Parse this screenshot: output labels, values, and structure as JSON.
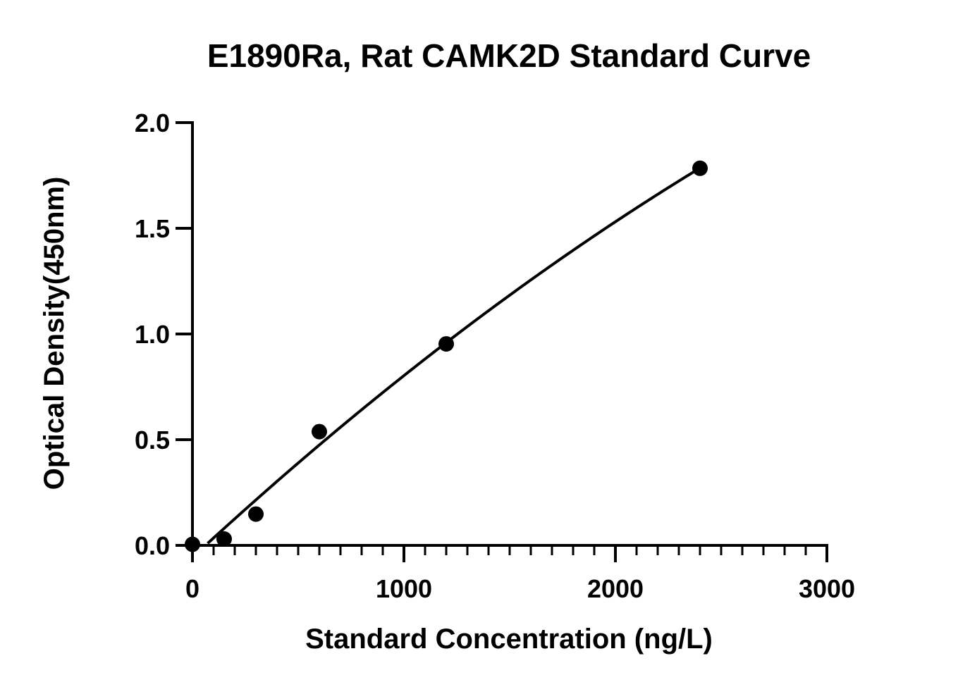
{
  "chart_data": {
    "type": "scatter",
    "title": "E1890Ra, Rat CAMK2D Standard Curve",
    "xlabel": "Standard Concentration (ng/L)",
    "ylabel": "Optical Density(450nm)",
    "xlim": [
      0,
      3000
    ],
    "ylim": [
      0,
      2.0
    ],
    "x_ticks": [
      "0",
      "1000",
      "2000",
      "3000"
    ],
    "y_ticks": [
      "0.0",
      "0.5",
      "1.0",
      "1.5",
      "2.0"
    ],
    "series": [
      {
        "x": [
          0,
          150,
          300,
          600,
          1200,
          2400
        ],
        "y": [
          0.005,
          0.03,
          0.148,
          0.538,
          0.953,
          1.784
        ]
      }
    ],
    "fit_curve": true,
    "grid": false,
    "colors": {
      "marker": "#000000",
      "line": "#000000",
      "axis": "#000000"
    }
  }
}
